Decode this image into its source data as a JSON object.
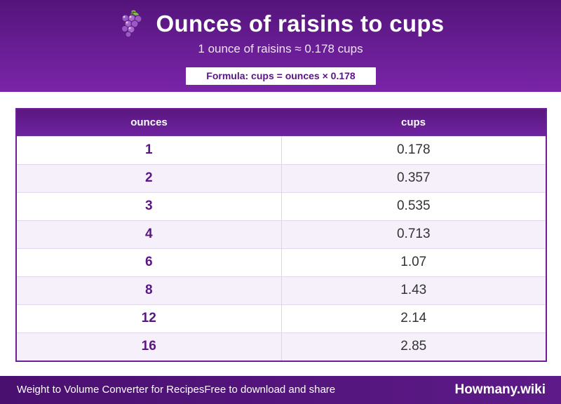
{
  "header": {
    "icon": "grapes-icon",
    "title": "Ounces of raisins to cups",
    "subtitle": "1 ounce of raisins ≈ 0.178 cups",
    "formula": "Formula: cups = ounces × 0.178"
  },
  "table": {
    "columns": [
      "ounces",
      "cups"
    ],
    "rows": [
      {
        "ounces": "1",
        "cups": "0.178"
      },
      {
        "ounces": "2",
        "cups": "0.357"
      },
      {
        "ounces": "3",
        "cups": "0.535"
      },
      {
        "ounces": "4",
        "cups": "0.713"
      },
      {
        "ounces": "6",
        "cups": "1.07"
      },
      {
        "ounces": "8",
        "cups": "1.43"
      },
      {
        "ounces": "12",
        "cups": "2.14"
      },
      {
        "ounces": "16",
        "cups": "2.85"
      }
    ]
  },
  "footer": {
    "left_text": "Weight to Volume Converter for RecipesFree to download and share",
    "brand": "Howmany.wiki"
  },
  "colors": {
    "primary": "#6a1e96",
    "dark": "#4a1070",
    "accent_text": "#5a1585",
    "row_alt": "#f5f0fa"
  }
}
